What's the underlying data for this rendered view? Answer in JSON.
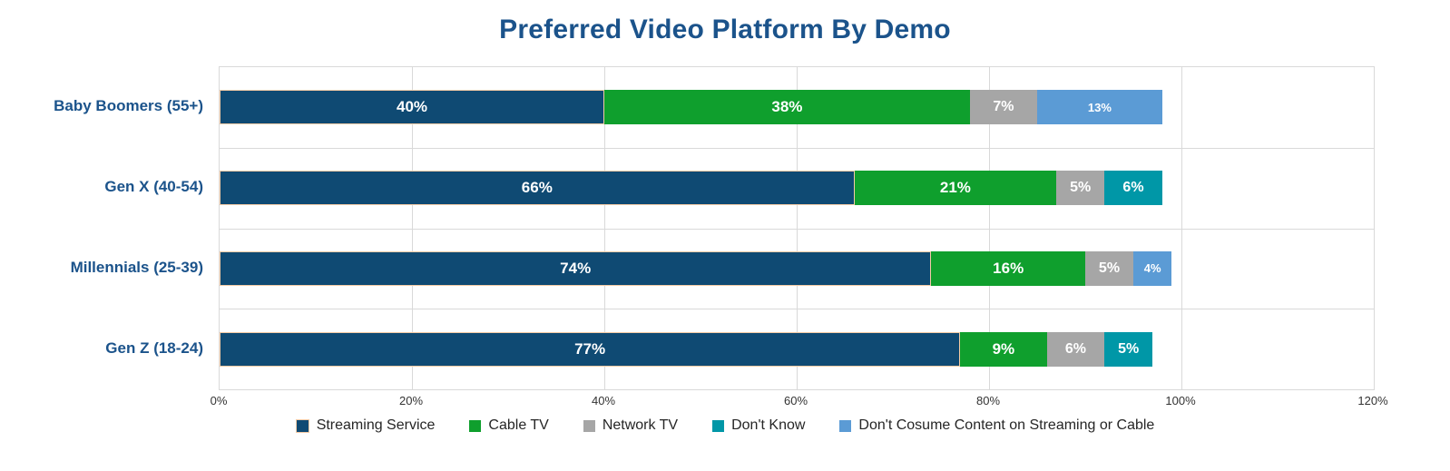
{
  "title": "Preferred Video Platform By Demo",
  "colors": {
    "title_text": "#1B538B",
    "category_text": "#1B538B",
    "gridline": "#D9D9D9",
    "axis_text": "#333333",
    "legend_text": "#262626",
    "data_label_text": "#FFFFFF",
    "bar_border": "#F4CBA6",
    "background": "#FFFFFF"
  },
  "chart_data": {
    "type": "bar",
    "orientation": "horizontal",
    "stacked": true,
    "title": "Preferred Video Platform By Demo",
    "categories": [
      "Baby Boomers (55+)",
      "Gen X (40-54)",
      "Millennials (25-39)",
      "Gen Z (18-24)"
    ],
    "series": [
      {
        "name": "Streaming Service",
        "color": "#0F4A73",
        "values": [
          40,
          66,
          74,
          77
        ],
        "label_size": 17,
        "border": "#F4CBA6"
      },
      {
        "name": "Cable TV",
        "color": "#0F9F2D",
        "values": [
          38,
          21,
          16,
          9
        ],
        "label_size": 17
      },
      {
        "name": "Network TV",
        "color": "#A6A6A6",
        "values": [
          7,
          5,
          5,
          6
        ],
        "label_size": 16
      },
      {
        "name": "Don't Know",
        "color": "#0097A7",
        "values": [
          0,
          6,
          0,
          5
        ],
        "label_size": 16
      },
      {
        "name": "Don't Cosume Content on Streaming or Cable",
        "color": "#5B9BD5",
        "values": [
          13,
          0,
          4,
          0
        ],
        "label_size": 13
      }
    ],
    "data_label_suffix": "%",
    "x_axis": {
      "min": 0,
      "max": 120,
      "step": 20,
      "tick_labels": [
        "0%",
        "20%",
        "40%",
        "60%",
        "80%",
        "100%",
        "120%"
      ]
    },
    "grid": true,
    "legend_position": "bottom"
  }
}
